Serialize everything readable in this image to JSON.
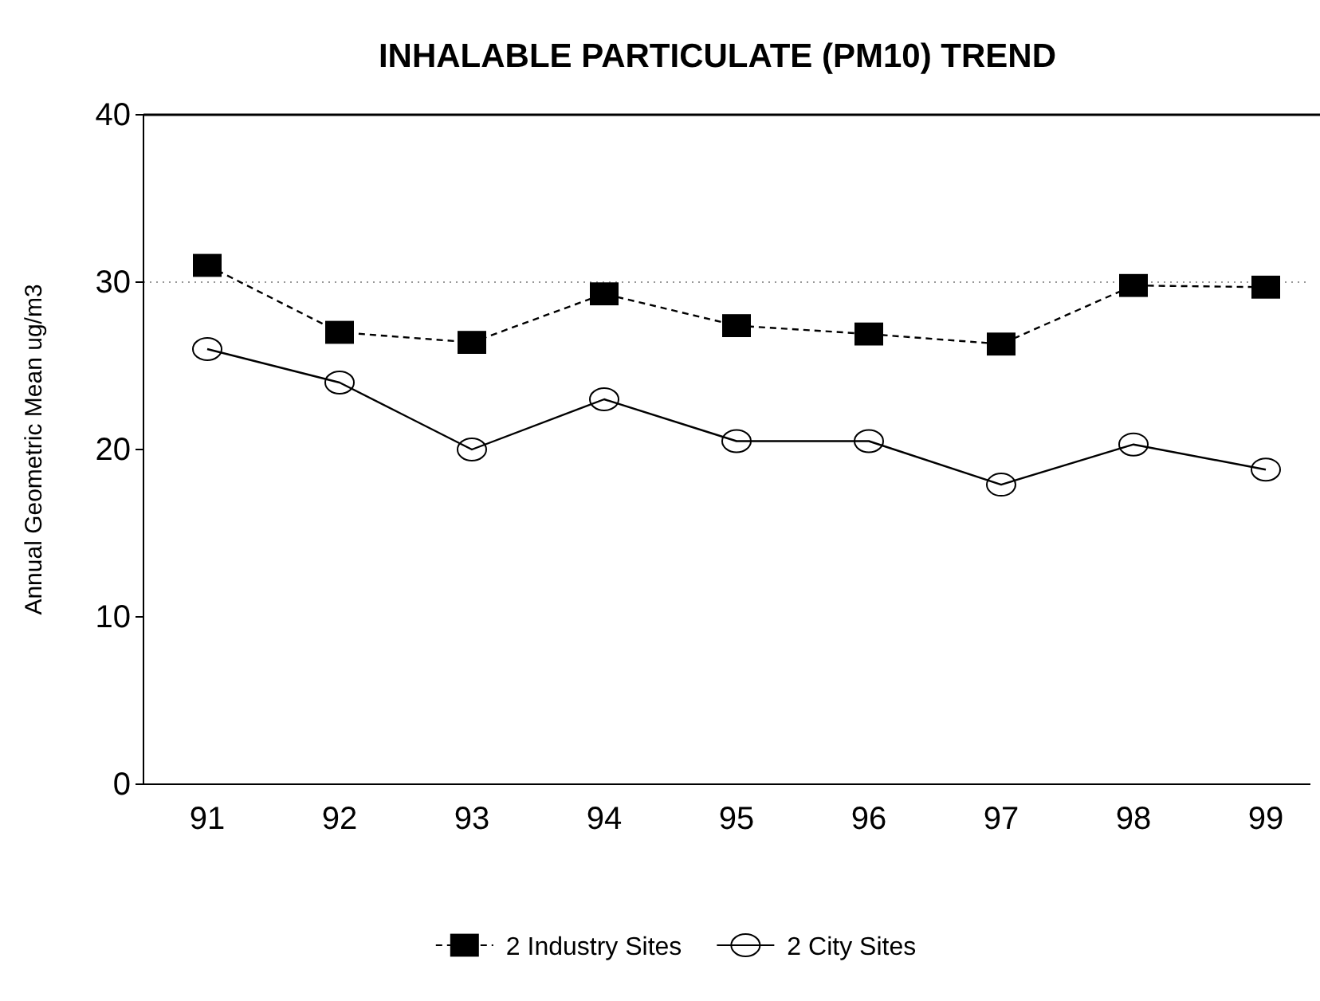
{
  "chart_data": {
    "type": "line",
    "title": "INHALABLE PARTICULATE (PM10) TREND",
    "ylabel": "Annual Geometric Mean  ug/m3",
    "categories": [
      "91",
      "92",
      "93",
      "94",
      "95",
      "96",
      "97",
      "98",
      "99"
    ],
    "series": [
      {
        "name": "2 Industry Sites",
        "color": "#000000",
        "marker": "square",
        "line_style": "dashed",
        "values": [
          31,
          27,
          26.4,
          29.3,
          27.4,
          26.9,
          26.3,
          29.8,
          29.7
        ]
      },
      {
        "name": "2 City Sites",
        "color": "#000000",
        "marker": "circle",
        "line_style": "solid",
        "values": [
          26,
          24,
          20,
          23,
          20.5,
          20.5,
          17.9,
          20.3,
          18.8
        ]
      }
    ],
    "ylim": [
      0,
      40
    ],
    "yticks": [
      0,
      10,
      20,
      30,
      40
    ],
    "legend": "bottom",
    "grid": false,
    "ref_lines": [
      {
        "axis": "y",
        "value": 30,
        "color": "#999999",
        "line_style": "dotted"
      }
    ]
  }
}
